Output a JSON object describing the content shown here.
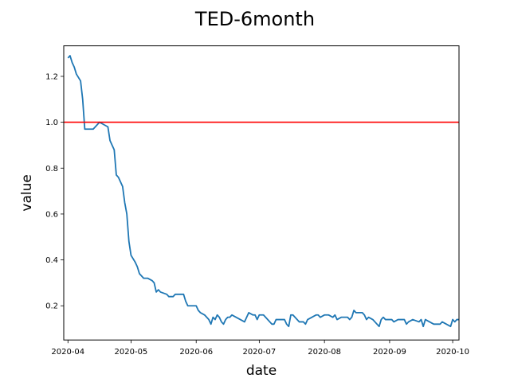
{
  "chart_data": {
    "type": "line",
    "title": "TED-6month",
    "xlabel": "date",
    "ylabel": "value",
    "x_range": [
      "2020-03-30",
      "2020-10-04"
    ],
    "ylim": [
      0.051,
      1.333
    ],
    "x_ticks": [
      {
        "date": "2020-04-01",
        "label": "2020-04"
      },
      {
        "date": "2020-05-01",
        "label": "2020-05"
      },
      {
        "date": "2020-06-01",
        "label": "2020-06"
      },
      {
        "date": "2020-07-01",
        "label": "2020-07"
      },
      {
        "date": "2020-08-01",
        "label": "2020-08"
      },
      {
        "date": "2020-09-01",
        "label": "2020-09"
      },
      {
        "date": "2020-10-01",
        "label": "2020-10"
      }
    ],
    "y_ticks": [
      {
        "value": 0.2,
        "label": "0.2"
      },
      {
        "value": 0.4,
        "label": "0.4"
      },
      {
        "value": 0.6,
        "label": "0.6"
      },
      {
        "value": 0.8,
        "label": "0.8"
      },
      {
        "value": 1.0,
        "label": "1.0"
      },
      {
        "value": 1.2,
        "label": "1.2"
      }
    ],
    "grid": false,
    "reference_line": {
      "y": 1.0,
      "color": "#ff0000"
    },
    "series": [
      {
        "color": "#1f77b4",
        "points": [
          [
            "2020-04-01",
            1.28
          ],
          [
            "2020-04-02",
            1.29
          ],
          [
            "2020-04-03",
            1.26
          ],
          [
            "2020-04-04",
            1.24
          ],
          [
            "2020-04-05",
            1.21
          ],
          [
            "2020-04-07",
            1.18
          ],
          [
            "2020-04-08",
            1.1
          ],
          [
            "2020-04-09",
            0.97
          ],
          [
            "2020-04-12",
            0.97
          ],
          [
            "2020-04-13",
            0.97
          ],
          [
            "2020-04-15",
            0.99
          ],
          [
            "2020-04-16",
            1.0
          ],
          [
            "2020-04-18",
            0.99
          ],
          [
            "2020-04-20",
            0.98
          ],
          [
            "2020-04-21",
            0.92
          ],
          [
            "2020-04-23",
            0.88
          ],
          [
            "2020-04-24",
            0.77
          ],
          [
            "2020-04-25",
            0.76
          ],
          [
            "2020-04-27",
            0.72
          ],
          [
            "2020-04-28",
            0.65
          ],
          [
            "2020-04-29",
            0.6
          ],
          [
            "2020-04-30",
            0.48
          ],
          [
            "2020-05-01",
            0.42
          ],
          [
            "2020-05-03",
            0.39
          ],
          [
            "2020-05-04",
            0.37
          ],
          [
            "2020-05-05",
            0.34
          ],
          [
            "2020-05-07",
            0.32
          ],
          [
            "2020-05-09",
            0.32
          ],
          [
            "2020-05-11",
            0.31
          ],
          [
            "2020-05-12",
            0.3
          ],
          [
            "2020-05-13",
            0.26
          ],
          [
            "2020-05-14",
            0.27
          ],
          [
            "2020-05-15",
            0.26
          ],
          [
            "2020-05-18",
            0.25
          ],
          [
            "2020-05-19",
            0.24
          ],
          [
            "2020-05-21",
            0.24
          ],
          [
            "2020-05-22",
            0.25
          ],
          [
            "2020-05-26",
            0.25
          ],
          [
            "2020-05-27",
            0.22
          ],
          [
            "2020-05-28",
            0.2
          ],
          [
            "2020-06-01",
            0.2
          ],
          [
            "2020-06-02",
            0.18
          ],
          [
            "2020-06-03",
            0.17
          ],
          [
            "2020-06-05",
            0.16
          ],
          [
            "2020-06-07",
            0.14
          ],
          [
            "2020-06-08",
            0.12
          ],
          [
            "2020-06-09",
            0.15
          ],
          [
            "2020-06-10",
            0.14
          ],
          [
            "2020-06-11",
            0.16
          ],
          [
            "2020-06-12",
            0.15
          ],
          [
            "2020-06-13",
            0.13
          ],
          [
            "2020-06-14",
            0.12
          ],
          [
            "2020-06-15",
            0.14
          ],
          [
            "2020-06-16",
            0.15
          ],
          [
            "2020-06-17",
            0.15
          ],
          [
            "2020-06-18",
            0.16
          ],
          [
            "2020-06-20",
            0.15
          ],
          [
            "2020-06-22",
            0.14
          ],
          [
            "2020-06-24",
            0.13
          ],
          [
            "2020-06-26",
            0.17
          ],
          [
            "2020-06-28",
            0.16
          ],
          [
            "2020-06-29",
            0.16
          ],
          [
            "2020-06-30",
            0.14
          ],
          [
            "2020-07-01",
            0.16
          ],
          [
            "2020-07-03",
            0.16
          ],
          [
            "2020-07-05",
            0.14
          ],
          [
            "2020-07-07",
            0.12
          ],
          [
            "2020-07-08",
            0.12
          ],
          [
            "2020-07-09",
            0.14
          ],
          [
            "2020-07-10",
            0.14
          ],
          [
            "2020-07-13",
            0.14
          ],
          [
            "2020-07-14",
            0.12
          ],
          [
            "2020-07-15",
            0.11
          ],
          [
            "2020-07-16",
            0.16
          ],
          [
            "2020-07-17",
            0.16
          ],
          [
            "2020-07-19",
            0.14
          ],
          [
            "2020-07-20",
            0.13
          ],
          [
            "2020-07-22",
            0.13
          ],
          [
            "2020-07-23",
            0.12
          ],
          [
            "2020-07-24",
            0.14
          ],
          [
            "2020-07-26",
            0.15
          ],
          [
            "2020-07-28",
            0.16
          ],
          [
            "2020-07-29",
            0.16
          ],
          [
            "2020-07-30",
            0.15
          ],
          [
            "2020-08-01",
            0.16
          ],
          [
            "2020-08-03",
            0.16
          ],
          [
            "2020-08-05",
            0.15
          ],
          [
            "2020-08-06",
            0.16
          ],
          [
            "2020-08-07",
            0.14
          ],
          [
            "2020-08-09",
            0.15
          ],
          [
            "2020-08-12",
            0.15
          ],
          [
            "2020-08-13",
            0.14
          ],
          [
            "2020-08-14",
            0.15
          ],
          [
            "2020-08-15",
            0.18
          ],
          [
            "2020-08-16",
            0.17
          ],
          [
            "2020-08-19",
            0.17
          ],
          [
            "2020-08-20",
            0.16
          ],
          [
            "2020-08-21",
            0.14
          ],
          [
            "2020-08-22",
            0.15
          ],
          [
            "2020-08-24",
            0.14
          ],
          [
            "2020-08-26",
            0.12
          ],
          [
            "2020-08-27",
            0.11
          ],
          [
            "2020-08-28",
            0.14
          ],
          [
            "2020-08-29",
            0.15
          ],
          [
            "2020-08-30",
            0.14
          ],
          [
            "2020-09-02",
            0.14
          ],
          [
            "2020-09-03",
            0.13
          ],
          [
            "2020-09-05",
            0.14
          ],
          [
            "2020-09-08",
            0.14
          ],
          [
            "2020-09-09",
            0.12
          ],
          [
            "2020-09-10",
            0.13
          ],
          [
            "2020-09-12",
            0.14
          ],
          [
            "2020-09-15",
            0.13
          ],
          [
            "2020-09-16",
            0.14
          ],
          [
            "2020-09-17",
            0.11
          ],
          [
            "2020-09-18",
            0.14
          ],
          [
            "2020-09-20",
            0.13
          ],
          [
            "2020-09-22",
            0.12
          ],
          [
            "2020-09-25",
            0.12
          ],
          [
            "2020-09-26",
            0.13
          ],
          [
            "2020-09-28",
            0.12
          ],
          [
            "2020-09-30",
            0.11
          ],
          [
            "2020-10-01",
            0.14
          ],
          [
            "2020-10-02",
            0.13
          ],
          [
            "2020-10-03",
            0.14
          ],
          [
            "2020-10-04",
            0.14
          ]
        ]
      }
    ]
  }
}
